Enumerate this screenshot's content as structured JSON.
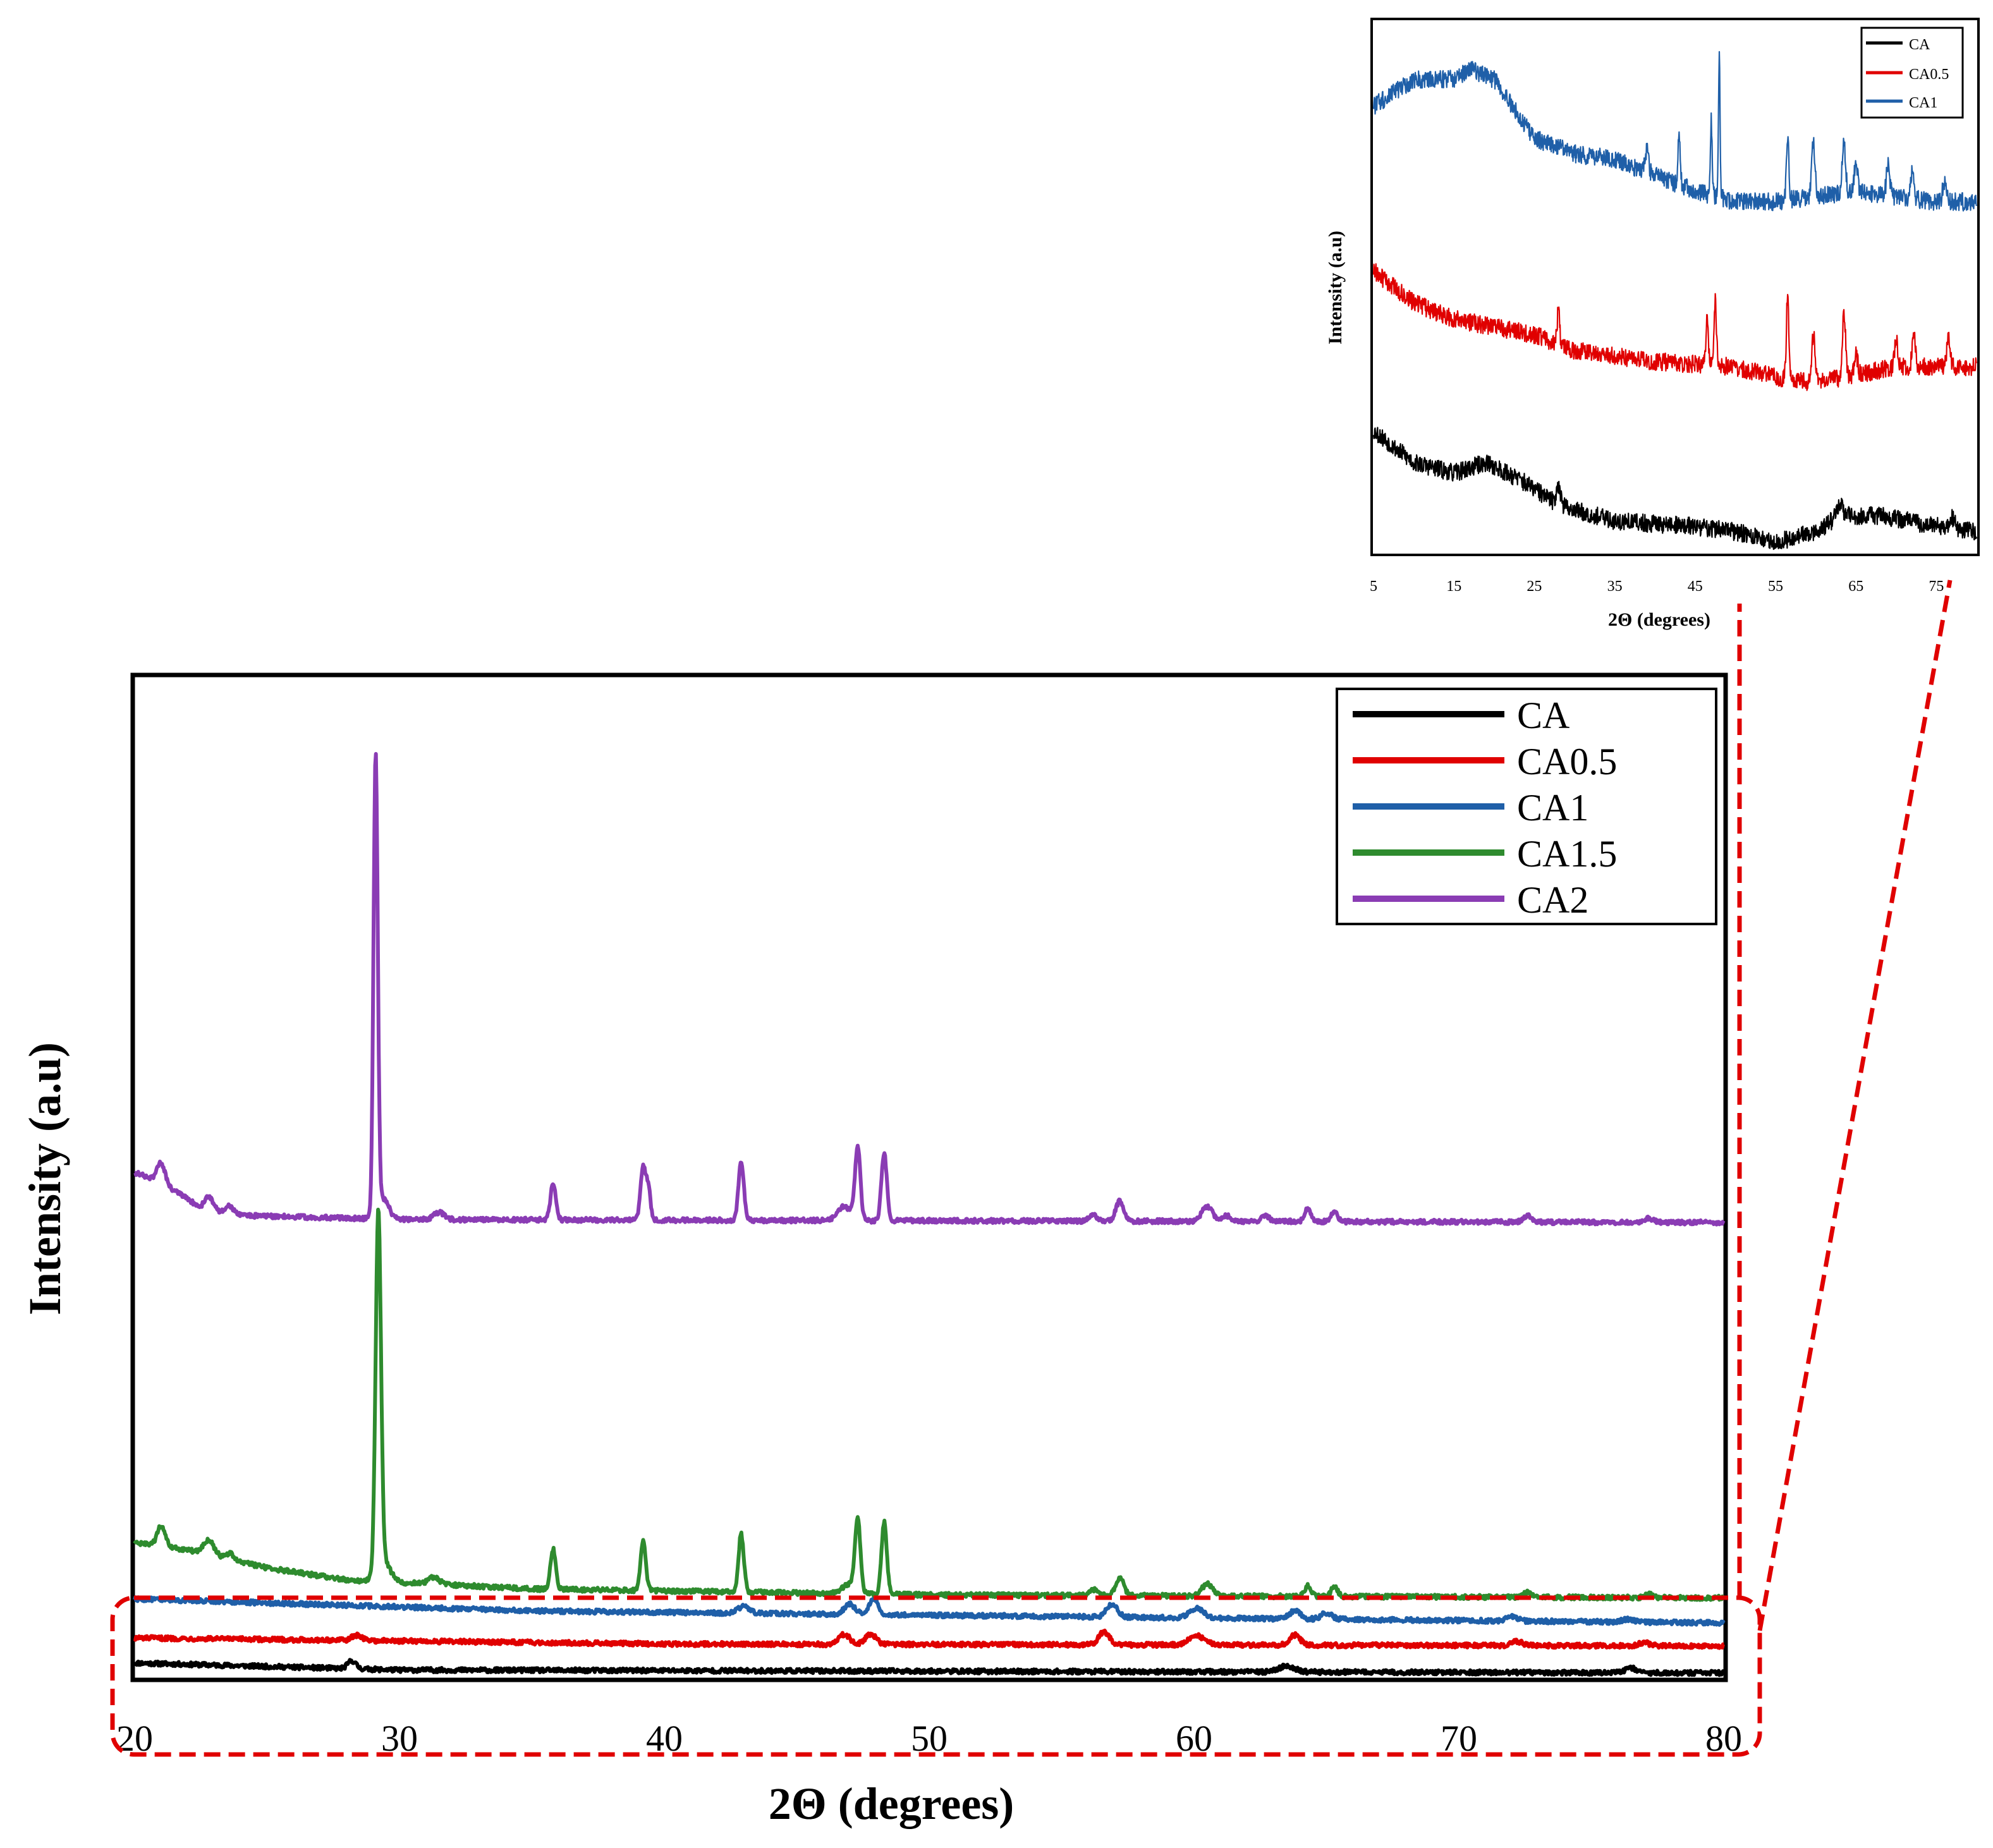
{
  "colors": {
    "CA": "#000000",
    "CA0.5": "#e00000",
    "CA1": "#1f5fa8",
    "CA1.5": "#2e8b2e",
    "CA2": "#8a3cb4",
    "highlight": "#e00000",
    "axis": "#000000"
  },
  "chart_data": [
    {
      "id": "main",
      "type": "line",
      "title": "",
      "xlabel": "2Θ (degrees)",
      "ylabel": "Intensity (a.u)",
      "xlim": [
        20,
        80
      ],
      "ylim": [
        0,
        100
      ],
      "xticks": [
        20,
        30,
        40,
        50,
        60,
        70,
        80
      ],
      "yticks": [],
      "legend_position": "top-right",
      "grid": false,
      "series": [
        {
          "name": "CA",
          "baseline": 0.5,
          "background": [
            [
              20,
              1.5
            ],
            [
              30,
              0.8
            ],
            [
              80,
              0.5
            ]
          ],
          "peaks": [
            [
              28.2,
              0.8,
              0.15
            ],
            [
              63.5,
              0.6,
              0.3
            ],
            [
              76.5,
              0.5,
              0.2
            ]
          ]
        },
        {
          "name": "CA0.5",
          "baseline": 3.2,
          "background": [
            [
              20,
              4.0
            ],
            [
              40,
              3.4
            ],
            [
              80,
              3.2
            ]
          ],
          "peaks": [
            [
              28.4,
              0.5,
              0.2
            ],
            [
              46.8,
              1.0,
              0.2
            ],
            [
              47.8,
              1.0,
              0.2
            ],
            [
              56.6,
              1.3,
              0.2
            ],
            [
              60.1,
              0.9,
              0.3
            ],
            [
              63.8,
              1.0,
              0.2
            ],
            [
              72.2,
              0.4,
              0.2
            ],
            [
              77.0,
              0.3,
              0.2
            ]
          ]
        },
        {
          "name": "CA1",
          "baseline": 5.5,
          "background": [
            [
              20,
              7.9
            ],
            [
              35,
              6.7
            ],
            [
              60,
              6.0
            ],
            [
              80,
              5.5
            ]
          ],
          "peaks": [
            [
              43.0,
              0.7,
              0.2
            ],
            [
              47.0,
              1.0,
              0.2
            ],
            [
              47.9,
              1.6,
              0.15
            ],
            [
              56.9,
              1.3,
              0.2
            ],
            [
              60.1,
              1.0,
              0.25
            ],
            [
              63.8,
              0.8,
              0.2
            ],
            [
              65.0,
              0.6,
              0.2
            ],
            [
              72.0,
              0.4,
              0.2
            ],
            [
              76.4,
              0.3,
              0.2
            ]
          ]
        },
        {
          "name": "CA1.5",
          "baseline": 8.0,
          "background": [
            [
              20,
              13.5
            ],
            [
              22,
              12.8
            ],
            [
              25,
              11.0
            ],
            [
              28,
              9.8
            ],
            [
              35,
              8.9
            ],
            [
              50,
              8.3
            ],
            [
              80,
              8.0
            ]
          ],
          "peaks": [
            [
              21.0,
              2.0,
              0.15
            ],
            [
              22.8,
              1.4,
              0.2
            ],
            [
              23.6,
              0.6,
              0.15
            ],
            [
              29.2,
              36.0,
              0.1
            ],
            [
              29.4,
              2.0,
              0.25
            ],
            [
              31.3,
              0.7,
              0.2
            ],
            [
              35.8,
              4.0,
              0.1
            ],
            [
              39.2,
              5.0,
              0.1
            ],
            [
              42.9,
              5.8,
              0.1
            ],
            [
              47.3,
              7.2,
              0.1
            ],
            [
              48.3,
              7.2,
              0.1
            ],
            [
              47.0,
              1.0,
              0.25
            ],
            [
              56.2,
              0.6,
              0.15
            ],
            [
              57.2,
              1.8,
              0.15
            ],
            [
              60.5,
              1.2,
              0.2
            ],
            [
              64.3,
              1.1,
              0.12
            ],
            [
              65.3,
              1.0,
              0.12
            ],
            [
              72.6,
              0.5,
              0.15
            ],
            [
              77.2,
              0.4,
              0.15
            ]
          ]
        },
        {
          "name": "CA2",
          "baseline": 45.5,
          "background": [
            [
              20,
              50.5
            ],
            [
              21,
              49.5
            ],
            [
              22.5,
              47.0
            ],
            [
              24,
              46.2
            ],
            [
              30,
              45.8
            ],
            [
              80,
              45.5
            ]
          ],
          "peaks": [
            [
              21.0,
              2.0,
              0.15
            ],
            [
              22.8,
              1.3,
              0.15
            ],
            [
              23.6,
              0.7,
              0.15
            ],
            [
              29.1,
              46.0,
              0.08
            ],
            [
              29.4,
              2.0,
              0.2
            ],
            [
              31.5,
              0.7,
              0.2
            ],
            [
              35.8,
              3.6,
              0.1
            ],
            [
              39.2,
              5.4,
              0.1
            ],
            [
              39.4,
              3.0,
              0.08
            ],
            [
              42.9,
              5.8,
              0.1
            ],
            [
              47.3,
              7.3,
              0.1
            ],
            [
              48.3,
              6.8,
              0.1
            ],
            [
              46.8,
              1.4,
              0.25
            ],
            [
              56.2,
              0.6,
              0.15
            ],
            [
              57.2,
              2.0,
              0.15
            ],
            [
              60.5,
              1.5,
              0.2
            ],
            [
              61.2,
              0.6,
              0.15
            ],
            [
              62.7,
              0.5,
              0.15
            ],
            [
              64.3,
              1.3,
              0.12
            ],
            [
              65.3,
              1.0,
              0.12
            ],
            [
              72.6,
              0.6,
              0.15
            ],
            [
              77.2,
              0.4,
              0.15
            ]
          ]
        }
      ],
      "legend": [
        "CA",
        "CA0.5",
        "CA1",
        "CA1.5",
        "CA2"
      ]
    },
    {
      "id": "inset",
      "type": "line",
      "title": "",
      "xlabel": "2Θ (degrees)",
      "ylabel": "Intensity (a.u)",
      "xlim": [
        5,
        80
      ],
      "ylim": [
        0,
        100
      ],
      "xticks": [
        5,
        15,
        25,
        35,
        45,
        55,
        65,
        75
      ],
      "yticks": [],
      "legend_position": "top-right",
      "grid": false,
      "series": [
        {
          "name": "CA",
          "background": [
            [
              5,
              23
            ],
            [
              10,
              17
            ],
            [
              15,
              15
            ],
            [
              19,
              17
            ],
            [
              23,
              14
            ],
            [
              28,
              9
            ],
            [
              35,
              6
            ],
            [
              45,
              5
            ],
            [
              50,
              4
            ],
            [
              55,
              2
            ],
            [
              60,
              4
            ],
            [
              63,
              7
            ],
            [
              68,
              7
            ],
            [
              75,
              5
            ],
            [
              80,
              4
            ]
          ],
          "peaks": [
            [
              28.0,
              4.0,
              0.25
            ],
            [
              63.0,
              2.0,
              0.4
            ],
            [
              77.0,
              2.0,
              0.3
            ]
          ]
        },
        {
          "name": "CA0.5",
          "background": [
            [
              5,
              53
            ],
            [
              10,
              47
            ],
            [
              15,
              44
            ],
            [
              25,
              41
            ],
            [
              30,
              38
            ],
            [
              40,
              36
            ],
            [
              50,
              35
            ],
            [
              55,
              33
            ],
            [
              60,
              32
            ],
            [
              70,
              35
            ],
            [
              80,
              35
            ]
          ],
          "peaks": [
            [
              28.0,
              7.0,
              0.15
            ],
            [
              46.5,
              9.0,
              0.15
            ],
            [
              47.5,
              12.0,
              0.15
            ],
            [
              56.5,
              16.0,
              0.15
            ],
            [
              59.7,
              9.0,
              0.2
            ],
            [
              63.5,
              12.0,
              0.2
            ],
            [
              65.0,
              4.0,
              0.2
            ],
            [
              70.0,
              5.0,
              0.2
            ],
            [
              72.2,
              7.0,
              0.2
            ],
            [
              76.5,
              5.0,
              0.2
            ]
          ]
        },
        {
          "name": "CA1",
          "background": [
            [
              5,
              84
            ],
            [
              10,
              89
            ],
            [
              15,
              89
            ],
            [
              17,
              91
            ],
            [
              20,
              89
            ],
            [
              25,
              78
            ],
            [
              30,
              75
            ],
            [
              35,
              74
            ],
            [
              40,
              71
            ],
            [
              45,
              68
            ],
            [
              50,
              66
            ],
            [
              55,
              66
            ],
            [
              60,
              67
            ],
            [
              65,
              68
            ],
            [
              70,
              67
            ],
            [
              75,
              66
            ],
            [
              80,
              66
            ]
          ],
          "peaks": [
            [
              39.0,
              4.0,
              0.2
            ],
            [
              43.0,
              9.0,
              0.15
            ],
            [
              47.0,
              14.0,
              0.12
            ],
            [
              48.0,
              26.0,
              0.1
            ],
            [
              56.5,
              12.0,
              0.15
            ],
            [
              59.7,
              10.0,
              0.2
            ],
            [
              63.5,
              10.0,
              0.2
            ],
            [
              65.0,
              6.0,
              0.2
            ],
            [
              69.0,
              6.0,
              0.2
            ],
            [
              72.0,
              5.0,
              0.2
            ],
            [
              76.0,
              4.0,
              0.2
            ]
          ]
        }
      ],
      "legend": [
        "CA",
        "CA0.5",
        "CA1"
      ]
    }
  ]
}
